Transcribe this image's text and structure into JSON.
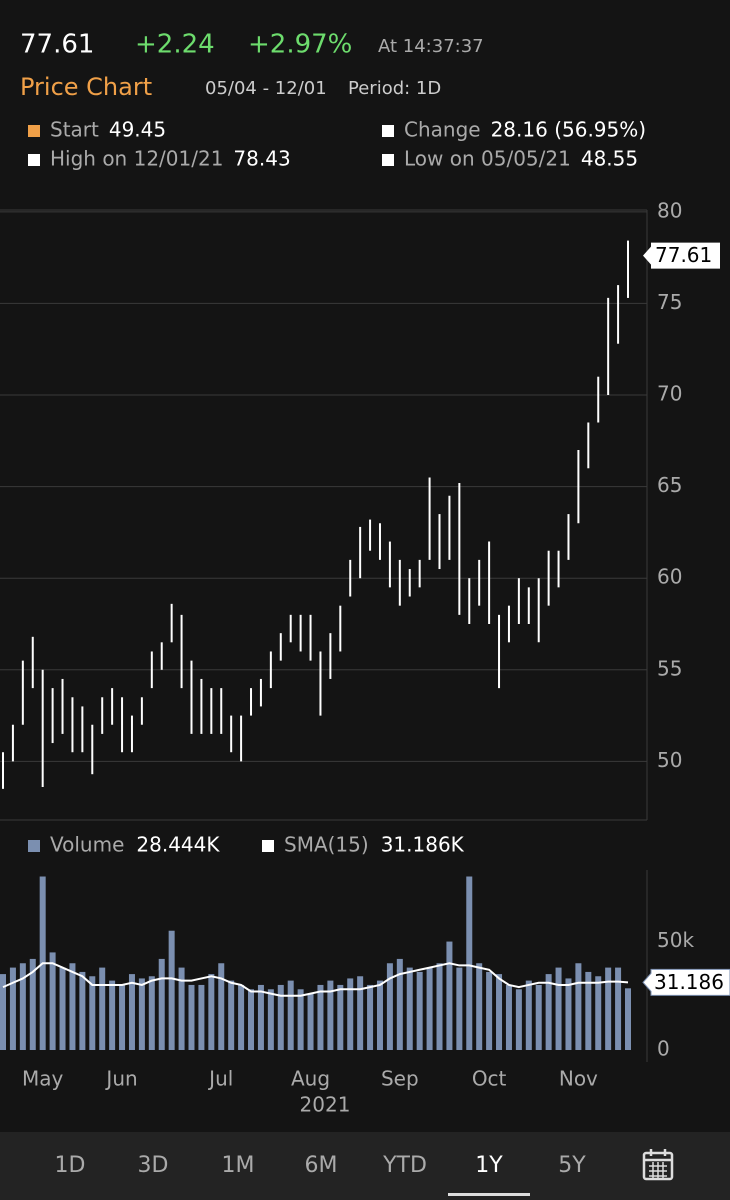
{
  "header": {
    "price": "77.61",
    "change": "+2.24",
    "change_pct": "+2.97%",
    "time": "At 14:37:37",
    "title": "Price Chart",
    "range": "05/04 - 12/01",
    "period": "Period: 1D"
  },
  "legend": [
    {
      "label": "Start",
      "value": "49.45",
      "color": "#f0a048"
    },
    {
      "label": "Change",
      "value": "28.16 (56.95%)",
      "color": "#ffffff"
    },
    {
      "label": "High on 12/01/21",
      "value": "78.43",
      "color": "#ffffff"
    },
    {
      "label": "Low on 05/05/21",
      "value": "48.55",
      "color": "#ffffff"
    }
  ],
  "tabs": [
    "1D",
    "3D",
    "1M",
    "6M",
    "YTD",
    "1Y",
    "5Y"
  ],
  "selected_tab": 5,
  "chart_data": [
    {
      "type": "hilo",
      "color": "#ffffff",
      "grid": true,
      "ylim": [
        46.8,
        80.1
      ],
      "yticks": [
        50,
        55,
        60,
        65,
        70,
        75,
        80
      ],
      "last": 77.61,
      "high": [
        50.5,
        52,
        55.5,
        56.8,
        55,
        54,
        54.5,
        53.5,
        53,
        52,
        53.5,
        54,
        53.5,
        52.5,
        53.5,
        56,
        56.5,
        58.6,
        58,
        55.5,
        54.5,
        54,
        54,
        52.5,
        52.5,
        54,
        54.5,
        56,
        57,
        58,
        58,
        58,
        56,
        57,
        58.5,
        61,
        62.8,
        63.2,
        63,
        62,
        61,
        60.5,
        61,
        65.5,
        63.5,
        64.5,
        65.2,
        60,
        61,
        62,
        58,
        58.5,
        60,
        59.5,
        60,
        61.5,
        61.5,
        63.5,
        67,
        68.5,
        71,
        75.3,
        76,
        78.43
      ],
      "low": [
        48.5,
        50,
        52,
        54,
        48.6,
        51,
        51.5,
        50.5,
        50.5,
        49.3,
        51.5,
        52,
        50.5,
        50.5,
        52,
        54,
        55,
        56.5,
        54,
        51.5,
        51.5,
        51.5,
        51.5,
        50.5,
        50,
        52.5,
        53,
        54,
        55.5,
        56.5,
        56,
        55.5,
        52.5,
        54.5,
        56,
        59,
        60,
        61.5,
        61,
        59.5,
        58.5,
        59,
        59.5,
        61,
        60.5,
        61,
        58,
        57.5,
        58.5,
        57.5,
        54,
        56.5,
        57.5,
        57.5,
        56.5,
        58.5,
        59.5,
        61,
        63,
        66,
        68.5,
        70,
        72.8,
        75.3
      ]
    },
    {
      "type": "bar",
      "xlabel": "2021",
      "categories": [
        null,
        null,
        null,
        null,
        "May",
        null,
        null,
        null,
        null,
        null,
        null,
        null,
        "Jun",
        null,
        null,
        null,
        null,
        null,
        null,
        null,
        null,
        null,
        "Jul",
        null,
        null,
        null,
        null,
        null,
        null,
        null,
        null,
        "Aug",
        null,
        null,
        null,
        null,
        null,
        null,
        null,
        null,
        "Sep",
        null,
        null,
        null,
        null,
        null,
        null,
        null,
        null,
        "Oct",
        null,
        null,
        null,
        null,
        null,
        null,
        null,
        null,
        "Nov",
        null,
        null,
        null,
        null,
        null
      ],
      "ylim": [
        0,
        83
      ],
      "yticks": [
        0,
        {
          "value": 50,
          "label": "50k"
        }
      ],
      "series": [
        {
          "name": "Volume",
          "color": "#7b8fb0",
          "value_label": "28.444K",
          "values": [
            35,
            38,
            40,
            42,
            80,
            45,
            38,
            40,
            36,
            34,
            38,
            32,
            30,
            35,
            33,
            34,
            42,
            55,
            38,
            30,
            30,
            35,
            40,
            32,
            30,
            28,
            30,
            28,
            30,
            32,
            28,
            26,
            30,
            32,
            30,
            33,
            34,
            30,
            32,
            40,
            42,
            38,
            36,
            38,
            40,
            50,
            38,
            80,
            40,
            36,
            35,
            30,
            28,
            32,
            30,
            35,
            38,
            33,
            40,
            36,
            34,
            38,
            38,
            28.444
          ]
        },
        {
          "name": "SMA(15)",
          "color": "#ffffff",
          "type": "line",
          "value_label": "31.186K",
          "tag_label": "31.186",
          "values": [
            29,
            31,
            33,
            36,
            40,
            40,
            38,
            36,
            34,
            30,
            30,
            30,
            30,
            31,
            30,
            32,
            33,
            33,
            32,
            32,
            33,
            34,
            33,
            31,
            30,
            27,
            27,
            26,
            25,
            25,
            25,
            26,
            27,
            27,
            28,
            28,
            28,
            29,
            30,
            33,
            35,
            36,
            37,
            38,
            39,
            40,
            39,
            39,
            38,
            37,
            33,
            30,
            29,
            30,
            31,
            31,
            30,
            30,
            31,
            31,
            31,
            31.5,
            31.5,
            31.186
          ]
        }
      ]
    }
  ]
}
